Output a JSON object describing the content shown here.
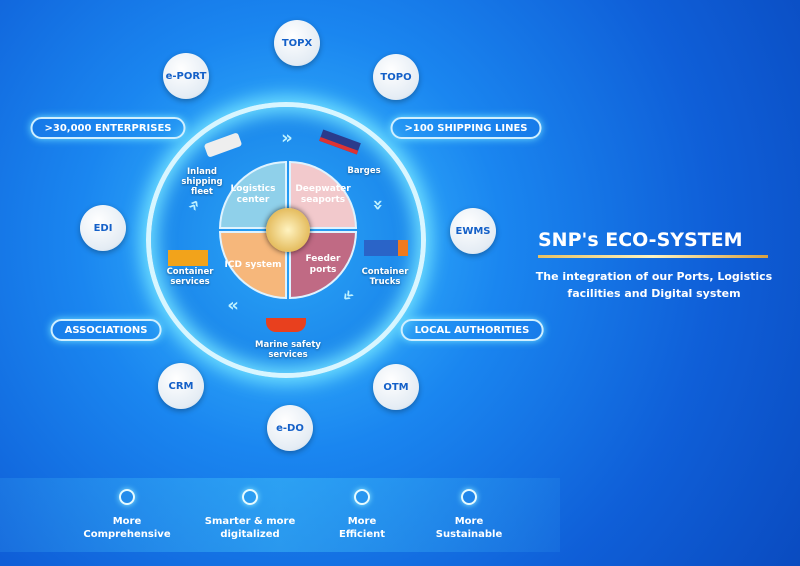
{
  "title": "SNP's ECO-SYSTEM",
  "subtitle_line1": "The integration of our Ports, Logistics",
  "subtitle_line2": "facilities and Digital system",
  "core": {
    "logistics": "Logistics center",
    "deepwater": "Deepwater seaports",
    "icd": "ICD system",
    "feeder": "Feeder ports"
  },
  "services": {
    "inland": "Inland shipping fleet",
    "barges": "Barges",
    "container_services": "Container services",
    "trucks": "Container Trucks",
    "marine": "Marine safety services"
  },
  "bubbles": [
    "TOPX",
    "TOPO",
    "e-PORT",
    "EWMS",
    "EDI",
    "CRM",
    "OTM",
    "e-DO"
  ],
  "pills": [
    ">30,000 ENTERPRISES",
    ">100 SHIPPING LINES",
    "ASSOCIATIONS",
    "LOCAL AUTHORITIES"
  ],
  "values": [
    {
      "l1": "More",
      "l2": "Comprehensive"
    },
    {
      "l1": "Smarter & more",
      "l2": "digitalized"
    },
    {
      "l1": "More",
      "l2": "Efficient"
    },
    {
      "l1": "More",
      "l2": "Sustainable"
    }
  ],
  "colors": {
    "logistics": "#8fd0ea",
    "deepwater": "#f2c9cc",
    "icd": "#f6b77b",
    "feeder": "#c06a84",
    "accent": "#e8b64a"
  }
}
